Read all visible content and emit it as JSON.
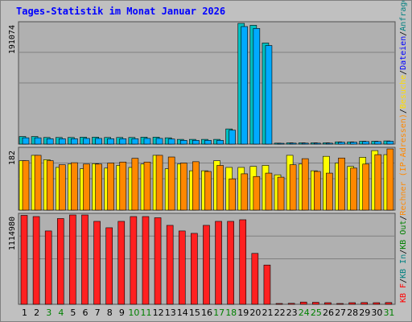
{
  "title": "Tages-Statistik im Monat Januar 2026",
  "colors": {
    "background": "#c0c0c0",
    "plot": "#b0b0b0",
    "anfragen": "#00c0c0",
    "dateien": "#00aaff",
    "rechner": "#ffff00",
    "besuche": "#ff8800",
    "kb": "#ff2020",
    "weekday": "#000000",
    "weekend": "#008000"
  },
  "chart_data": [
    {
      "type": "bar",
      "panel": "top",
      "ymax_label": "191074",
      "ylim": [
        0,
        191074
      ],
      "categories": [
        "1",
        "2",
        "3",
        "4",
        "5",
        "6",
        "7",
        "8",
        "9",
        "10",
        "11",
        "12",
        "13",
        "14",
        "15",
        "16",
        "17",
        "18",
        "19",
        "20",
        "21",
        "22",
        "23",
        "24",
        "25",
        "26",
        "27",
        "28",
        "29",
        "30",
        "31"
      ],
      "series": [
        {
          "name": "Anfragen",
          "color": "#00c0c0",
          "values": [
            12000,
            12000,
            10500,
            10500,
            10500,
            11000,
            11000,
            10500,
            10500,
            10500,
            11000,
            11000,
            10000,
            7500,
            7500,
            7500,
            7500,
            24000,
            191074,
            188000,
            160000,
            1500,
            2000,
            2000,
            2000,
            2000,
            3500,
            3500,
            4500,
            4500,
            5000
          ]
        },
        {
          "name": "Dateien",
          "color": "#00aaff",
          "values": [
            10000,
            10000,
            8500,
            8500,
            8500,
            9000,
            9000,
            8500,
            8500,
            8500,
            9000,
            9000,
            8000,
            6000,
            6000,
            6000,
            6000,
            22000,
            186000,
            183000,
            156000,
            1000,
            1500,
            1500,
            1500,
            1500,
            3000,
            3000,
            4000,
            4000,
            4500
          ]
        }
      ]
    },
    {
      "type": "bar",
      "panel": "middle",
      "ymax_label": "182",
      "ylim": [
        0,
        182
      ],
      "categories": [
        "1",
        "2",
        "3",
        "4",
        "5",
        "6",
        "7",
        "8",
        "9",
        "10",
        "11",
        "12",
        "13",
        "14",
        "15",
        "16",
        "17",
        "18",
        "19",
        "20",
        "21",
        "22",
        "23",
        "24",
        "25",
        "26",
        "27",
        "28",
        "29",
        "30",
        "31"
      ],
      "series": [
        {
          "name": "Rechner (IP-Adressen)",
          "color": "#ffff00",
          "values": [
            147,
            163,
            150,
            127,
            137,
            123,
            138,
            125,
            133,
            127,
            137,
            163,
            123,
            137,
            117,
            117,
            147,
            127,
            127,
            130,
            133,
            105,
            163,
            137,
            117,
            160,
            140,
            130,
            157,
            177,
            165
          ]
        },
        {
          "name": "Besuche",
          "color": "#ff8800",
          "values": [
            147,
            163,
            147,
            135,
            141,
            137,
            137,
            140,
            143,
            154,
            143,
            163,
            158,
            140,
            144,
            115,
            133,
            93,
            108,
            100,
            110,
            98,
            135,
            153,
            115,
            110,
            155,
            125,
            137,
            165,
            182
          ]
        }
      ]
    },
    {
      "type": "bar",
      "panel": "bottom",
      "ymax_label": "1114980",
      "ylim": [
        0,
        1114980
      ],
      "categories": [
        "1",
        "2",
        "3",
        "4",
        "5",
        "6",
        "7",
        "8",
        "9",
        "10",
        "11",
        "12",
        "13",
        "14",
        "15",
        "16",
        "17",
        "18",
        "19",
        "20",
        "21",
        "22",
        "23",
        "24",
        "25",
        "26",
        "27",
        "28",
        "29",
        "30",
        "31"
      ],
      "series": [
        {
          "name": "KB F",
          "color": "#ff2020",
          "values": [
            1110000,
            1095000,
            915000,
            1070000,
            1114980,
            1114980,
            1035000,
            955000,
            1035000,
            1095000,
            1095000,
            1080000,
            985000,
            915000,
            885000,
            985000,
            1035000,
            1035000,
            1055000,
            635000,
            490000,
            8000,
            12000,
            28000,
            25000,
            20000,
            10000,
            20000,
            22000,
            20000,
            22000
          ]
        }
      ]
    }
  ],
  "day_labels": [
    "1",
    "2",
    "3",
    "4",
    "5",
    "6",
    "7",
    "8",
    "9",
    "10",
    "11",
    "12",
    "13",
    "14",
    "15",
    "16",
    "17",
    "18",
    "19",
    "20",
    "21",
    "22",
    "23",
    "24",
    "25",
    "26",
    "27",
    "28",
    "29",
    "30",
    "31"
  ],
  "weekend_days": [
    "3",
    "4",
    "10",
    "11",
    "17",
    "18",
    "24",
    "25",
    "31"
  ],
  "legend": [
    {
      "text": "KB F",
      "color": "#ff0000"
    },
    {
      "text": "/",
      "color": "#000000"
    },
    {
      "text": "KB In",
      "color": "#008080"
    },
    {
      "text": "/",
      "color": "#000000"
    },
    {
      "text": "KB Out",
      "color": "#008000"
    },
    {
      "text": "/",
      "color": "#000000"
    },
    {
      "text": "Rechner (IP-Adressen)",
      "color": "#ff8800"
    },
    {
      "text": "/",
      "color": "#000000"
    },
    {
      "text": "Besuche",
      "color": "#ffdd00"
    },
    {
      "text": "/",
      "color": "#000000"
    },
    {
      "text": "Dateien",
      "color": "#0000ff"
    },
    {
      "text": "/",
      "color": "#000000"
    },
    {
      "text": "Anfragen",
      "color": "#008080"
    }
  ]
}
